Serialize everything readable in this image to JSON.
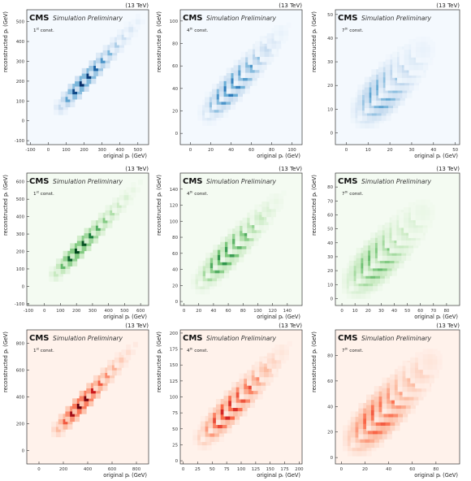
{
  "figure": {
    "experiment_label": "CMS",
    "status_label": "Simulation Preliminary",
    "energy_label": "(13 TeV)",
    "x_axis_label": "original pₜ (GeV)",
    "y_axis_label": "reconstructed pₜ (GeV)"
  },
  "chart_data": [
    {
      "type": "heatmap",
      "colormap": "Blues",
      "constituent": "1st const.",
      "const_num": "1",
      "const_sup": "st",
      "xlim": [
        -120,
        560
      ],
      "ylim": [
        -120,
        560
      ],
      "xticks": [
        -100,
        0,
        100,
        200,
        300,
        400,
        500
      ],
      "yticks": [
        -100,
        0,
        100,
        200,
        300,
        400,
        500
      ],
      "diagonal": [
        50,
        520
      ],
      "intensity": [
        0.25,
        0.55,
        0.9,
        1.0,
        0.95,
        0.8,
        0.6,
        0.45,
        0.32,
        0.22,
        0.15,
        0.08
      ],
      "spread": 0.02
    },
    {
      "type": "heatmap",
      "colormap": "Blues",
      "constituent": "4th const.",
      "const_num": "4",
      "const_sup": "th",
      "xlim": [
        -10,
        110
      ],
      "ylim": [
        -10,
        110
      ],
      "xticks": [
        0,
        20,
        40,
        60,
        80,
        100
      ],
      "yticks": [
        0,
        20,
        40,
        60,
        80,
        100
      ],
      "diagonal": [
        15,
        100
      ],
      "intensity": [
        0.2,
        0.55,
        0.85,
        1.0,
        0.95,
        0.8,
        0.6,
        0.4,
        0.25,
        0.14,
        0.07,
        0.03
      ],
      "spread": 0.06
    },
    {
      "type": "heatmap",
      "colormap": "Blues",
      "constituent": "7th const.",
      "const_num": "7",
      "const_sup": "th",
      "xlim": [
        -5,
        52
      ],
      "ylim": [
        -5,
        52
      ],
      "xticks": [
        0,
        10,
        20,
        30,
        40,
        50
      ],
      "yticks": [
        0,
        10,
        20,
        30,
        40,
        50
      ],
      "diagonal": [
        8,
        40
      ],
      "intensity": [
        0.3,
        0.7,
        1.0,
        0.95,
        0.75,
        0.5,
        0.3,
        0.15,
        0.07,
        0.03
      ],
      "spread": 0.11
    },
    {
      "type": "heatmap",
      "colormap": "Greens",
      "constituent": "1st const.",
      "const_num": "1",
      "const_sup": "st",
      "xlim": [
        -110,
        650
      ],
      "ylim": [
        -110,
        650
      ],
      "xticks": [
        -100,
        0,
        100,
        200,
        300,
        400,
        500,
        600
      ],
      "yticks": [
        -100,
        0,
        100,
        200,
        300,
        400,
        500,
        600
      ],
      "diagonal": [
        50,
        620
      ],
      "intensity": [
        0.25,
        0.55,
        0.9,
        1.0,
        0.95,
        0.8,
        0.6,
        0.45,
        0.32,
        0.22,
        0.15,
        0.08,
        0.04
      ],
      "spread": 0.02
    },
    {
      "type": "heatmap",
      "colormap": "Greens",
      "constituent": "4th const.",
      "const_num": "4",
      "const_sup": "th",
      "xlim": [
        -5,
        160
      ],
      "ylim": [
        -5,
        160
      ],
      "xticks": [
        0,
        20,
        40,
        60,
        80,
        100,
        120,
        140
      ],
      "yticks": [
        0,
        20,
        40,
        60,
        80,
        100,
        120,
        140
      ],
      "diagonal": [
        20,
        140
      ],
      "intensity": [
        0.2,
        0.5,
        0.85,
        1.0,
        0.95,
        0.8,
        0.6,
        0.4,
        0.25,
        0.14,
        0.07,
        0.03
      ],
      "spread": 0.06
    },
    {
      "type": "heatmap",
      "colormap": "Greens",
      "constituent": "7th const.",
      "const_num": "7",
      "const_sup": "th",
      "xlim": [
        -5,
        90
      ],
      "ylim": [
        -5,
        90
      ],
      "xticks": [
        0,
        10,
        20,
        30,
        40,
        50,
        60,
        70,
        80
      ],
      "yticks": [
        0,
        10,
        20,
        30,
        40,
        50,
        60,
        70,
        80
      ],
      "diagonal": [
        10,
        70
      ],
      "intensity": [
        0.3,
        0.65,
        0.95,
        1.0,
        0.85,
        0.65,
        0.45,
        0.28,
        0.15,
        0.07,
        0.03
      ],
      "spread": 0.1
    },
    {
      "type": "heatmap",
      "colormap": "Reds",
      "constituent": "1st const.",
      "const_num": "1",
      "const_sup": "st",
      "xlim": [
        -100,
        900
      ],
      "ylim": [
        -100,
        900
      ],
      "xticks": [
        0,
        200,
        400,
        600,
        800
      ],
      "yticks": [
        0,
        200,
        400,
        600,
        800
      ],
      "diagonal": [
        130,
        820
      ],
      "intensity": [
        0.25,
        0.55,
        0.85,
        1.0,
        0.95,
        0.75,
        0.55,
        0.4,
        0.28,
        0.18,
        0.1,
        0.05
      ],
      "spread": 0.02
    },
    {
      "type": "heatmap",
      "colormap": "Reds",
      "constituent": "4th const.",
      "const_num": "4",
      "const_sup": "th",
      "xlim": [
        -5,
        205
      ],
      "ylim": [
        -5,
        205
      ],
      "xticks": [
        0,
        25,
        50,
        75,
        100,
        125,
        150,
        175,
        200
      ],
      "yticks": [
        0,
        25,
        50,
        75,
        100,
        125,
        150,
        175,
        200
      ],
      "diagonal": [
        30,
        190
      ],
      "intensity": [
        0.2,
        0.5,
        0.85,
        1.0,
        0.95,
        0.8,
        0.6,
        0.4,
        0.25,
        0.14,
        0.07,
        0.03
      ],
      "spread": 0.06
    },
    {
      "type": "heatmap",
      "colormap": "Reds",
      "constituent": "7th const.",
      "const_num": "7",
      "const_sup": "th",
      "xlim": [
        -5,
        100
      ],
      "ylim": [
        -5,
        100
      ],
      "xticks": [
        0,
        20,
        40,
        60,
        80
      ],
      "yticks": [
        0,
        20,
        40,
        60,
        80
      ],
      "diagonal": [
        12,
        85
      ],
      "intensity": [
        0.3,
        0.65,
        0.95,
        1.0,
        0.85,
        0.65,
        0.45,
        0.28,
        0.15,
        0.07,
        0.03
      ],
      "spread": 0.1
    }
  ]
}
